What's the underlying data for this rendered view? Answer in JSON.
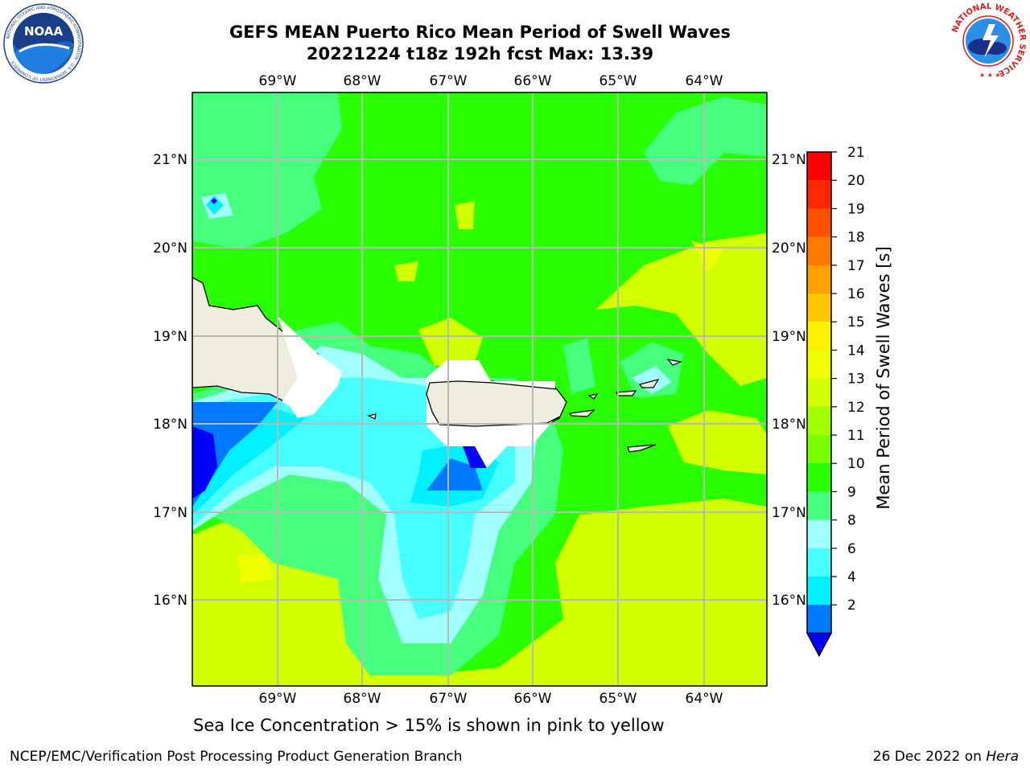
{
  "header": {
    "title_line1": "GEFS MEAN Puerto Rico Mean Period of Swell Waves",
    "title_line2": "20221224 t18z 192h fcst   Max: 13.39"
  },
  "logos": {
    "left": "NOAA",
    "left_ring_text": "NATIONAL OCEANIC AND ATMOSPHERIC ADMINISTRATION · U.S. DEPARTMENT OF COMMERCE",
    "right_ring_text": "NATIONAL WEATHER SERVICE"
  },
  "map": {
    "lon_labels": [
      "69°W",
      "68°W",
      "67°W",
      "66°W",
      "65°W",
      "64°W"
    ],
    "lat_labels": [
      "21°N",
      "20°N",
      "19°N",
      "18°N",
      "17°N",
      "16°N"
    ],
    "colors": {
      "land": "#efedde",
      "grid": "#b8b8b8",
      "coast": "#000000"
    }
  },
  "colorbar": {
    "label": "Mean Period of Swell Waves [s]",
    "ticks": [
      "21",
      "20",
      "19",
      "18",
      "17",
      "16",
      "15",
      "14",
      "13",
      "12",
      "11",
      "10",
      "9",
      "8",
      "6",
      "4",
      "2"
    ],
    "colors": [
      "#ff0000",
      "#ff2800",
      "#ff5000",
      "#ff7800",
      "#ffa000",
      "#ffc800",
      "#fff000",
      "#f0ff00",
      "#d2ff00",
      "#a0ff00",
      "#78ff00",
      "#28ff00",
      "#46ff7d",
      "#a0ffff",
      "#46ffff",
      "#00f0ff",
      "#0078ff",
      "#0000ff"
    ]
  },
  "footer": {
    "note": "Sea Ice Concentration > 15% is shown in pink to yellow",
    "left": "NCEP/EMC/Verification Post Processing Product Generation Branch",
    "date": "26 Dec 2022 on ",
    "host": "Hera"
  }
}
